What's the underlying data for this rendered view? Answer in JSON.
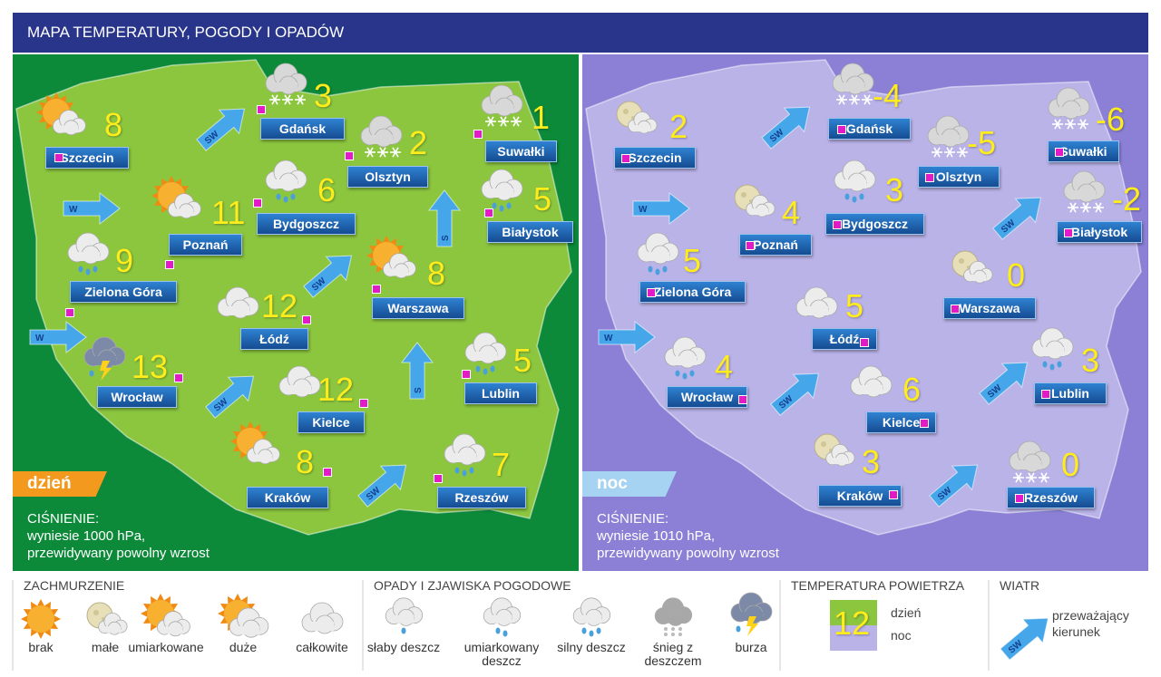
{
  "header": {
    "title": "MAPA TEMPERATURY, POGODY I OPADÓW"
  },
  "day": {
    "tag": "dzień",
    "pressure": {
      "title": "CIŚNIENIE:",
      "lines": [
        "wyniesie 1000 hPa,",
        "przewidywany powolny wzrost"
      ]
    },
    "cities": [
      {
        "name": "Szczecin",
        "temp": 8
      },
      {
        "name": "Gdańsk",
        "temp": 3
      },
      {
        "name": "Suwałki",
        "temp": 1
      },
      {
        "name": "Olsztyn",
        "temp": 2
      },
      {
        "name": "Bydgoszcz",
        "temp": 6
      },
      {
        "name": "Białystok",
        "temp": 5
      },
      {
        "name": "Poznań",
        "temp": 11
      },
      {
        "name": "Zielona Góra",
        "temp": 9
      },
      {
        "name": "Warszawa",
        "temp": 8
      },
      {
        "name": "Łódź",
        "temp": 12
      },
      {
        "name": "Wrocław",
        "temp": 13
      },
      {
        "name": "Kielce",
        "temp": 12
      },
      {
        "name": "Lublin",
        "temp": 5
      },
      {
        "name": "Kraków",
        "temp": 8
      },
      {
        "name": "Rzeszów",
        "temp": 7
      }
    ],
    "winds": [
      "SW",
      "W",
      "S",
      "SW",
      "W",
      "SW",
      "S",
      "SW"
    ]
  },
  "night": {
    "tag": "noc",
    "pressure": {
      "title": "CIŚNIENIE:",
      "lines": [
        "wyniesie 1010 hPa,",
        "przewidywany powolny wzrost"
      ]
    },
    "cities": [
      {
        "name": "Szczecin",
        "temp": 2
      },
      {
        "name": "Gdańsk",
        "temp": -4
      },
      {
        "name": "Suwałki",
        "temp": -6
      },
      {
        "name": "Olsztyn",
        "temp": -5
      },
      {
        "name": "Bydgoszcz",
        "temp": 3
      },
      {
        "name": "Białystok",
        "temp": -2
      },
      {
        "name": "Poznań",
        "temp": 4
      },
      {
        "name": "Zielona Góra",
        "temp": 5
      },
      {
        "name": "Warszawa",
        "temp": 0
      },
      {
        "name": "Łódź",
        "temp": 5
      },
      {
        "name": "Wrocław",
        "temp": 4
      },
      {
        "name": "Kielce",
        "temp": 6
      },
      {
        "name": "Lublin",
        "temp": 3
      },
      {
        "name": "Kraków",
        "temp": 3
      },
      {
        "name": "Rzeszów",
        "temp": 0
      }
    ],
    "winds": [
      "SW",
      "W",
      "SW",
      "W",
      "SW",
      "SW",
      "SW"
    ]
  },
  "legend": {
    "cloudiness": {
      "title": "ZACHMURZENIE",
      "items": [
        "brak",
        "małe",
        "umiarkowane",
        "duże",
        "całkowite"
      ]
    },
    "precipitation": {
      "title": "OPADY I ZJAWISKA POGODOWE",
      "items": [
        "słaby deszcz",
        "umiarkowany deszcz",
        "silny deszcz",
        "śnieg z deszczem",
        "burza"
      ]
    },
    "temperature": {
      "title": "TEMPERATURA POWIETRZA",
      "sample": 12,
      "day": "dzień",
      "night": "noc"
    },
    "wind": {
      "title": "WIATR",
      "label": "SW",
      "text": "przeważający kierunek"
    }
  }
}
